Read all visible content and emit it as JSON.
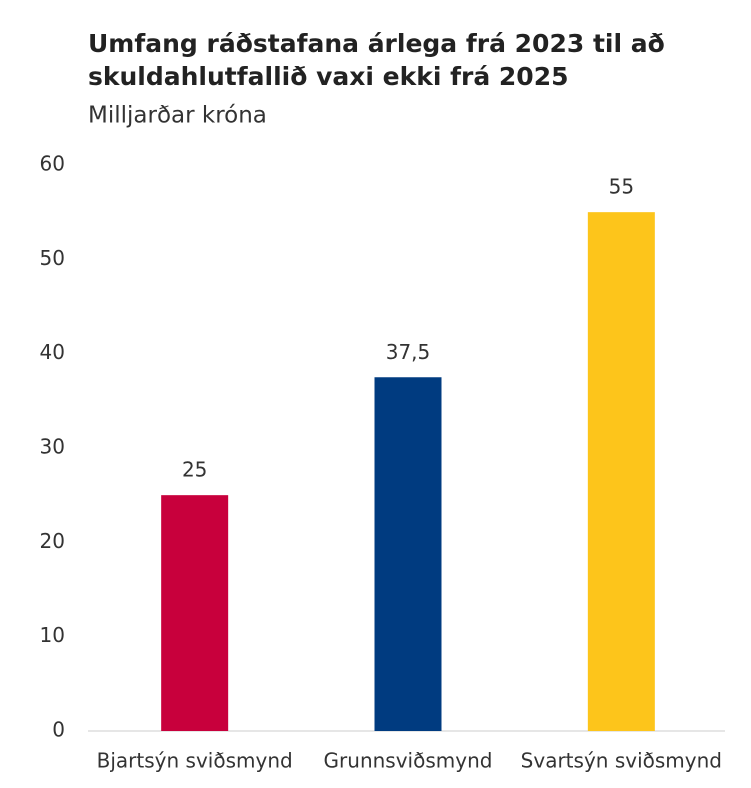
{
  "chart_data": {
    "type": "bar",
    "title": [
      "Umfang ráðstafana árlega frá 2023 til að",
      "skuldahlutfallið vaxi ekki frá 2025"
    ],
    "subtitle": "Milljarðar króna",
    "categories": [
      "Bjartsýn sviðsmynd",
      "Grunnsviðsmynd",
      "Svartsýn sviðsmynd"
    ],
    "values": [
      25,
      37.5,
      55
    ],
    "value_labels": [
      "25",
      "37,5",
      "55"
    ],
    "colors": [
      "#c8003c",
      "#003b80",
      "#fdc51b"
    ],
    "ylim": [
      0,
      60
    ],
    "yticks": [
      0,
      10,
      20,
      30,
      40,
      50,
      60
    ],
    "grid": false
  }
}
